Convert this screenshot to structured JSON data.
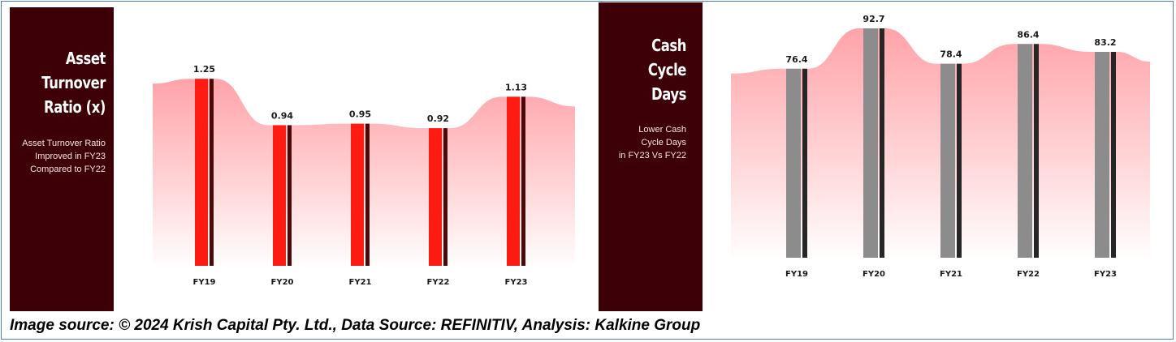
{
  "caption": "Image source: © 2024 Krish Capital Pty. Ltd., Data Source: REFINITIV, Analysis: Kalkine Group",
  "colors": {
    "panel_background": "#3d0007",
    "area_fill": "#ff9ea4",
    "left_bar": "#ff1a12",
    "left_bar_accent": "#4a0a0a",
    "right_bar": "#8c8c8c",
    "right_bar_accent": "#262626",
    "frame_border": "#4f7ac7"
  },
  "chart_data": [
    {
      "type": "bar",
      "title": "Asset Turnover Ratio (x)",
      "title_lines": [
        "Asset",
        "Turnover",
        "Ratio (x)"
      ],
      "note_lines": [
        "Asset Turnover Ratio",
        "Improved in FY23",
        "Compared to FY22"
      ],
      "categories": [
        "FY19",
        "FY20",
        "FY21",
        "FY22",
        "FY23"
      ],
      "values": [
        1.25,
        0.94,
        0.95,
        0.92,
        1.13
      ],
      "value_labels": [
        "1.25",
        "0.94",
        "0.95",
        "0.92",
        "1.13"
      ],
      "ylim": [
        0,
        1.3
      ],
      "grid": false,
      "legend": "none"
    },
    {
      "type": "bar",
      "title": "Cash Cycle Days",
      "title_lines": [
        "Cash",
        "Cycle",
        "Days"
      ],
      "note_lines": [
        "Lower Cash",
        "Cycle Days",
        "in FY23 Vs FY22"
      ],
      "categories": [
        "FY19",
        "FY20",
        "FY21",
        "FY22",
        "FY23"
      ],
      "values": [
        76.4,
        92.7,
        78.4,
        86.4,
        83.2
      ],
      "value_labels": [
        "76.4",
        "92.7",
        "78.4",
        "86.4",
        "83.2"
      ],
      "ylim": [
        0,
        95
      ],
      "grid": false,
      "legend": "none"
    }
  ]
}
